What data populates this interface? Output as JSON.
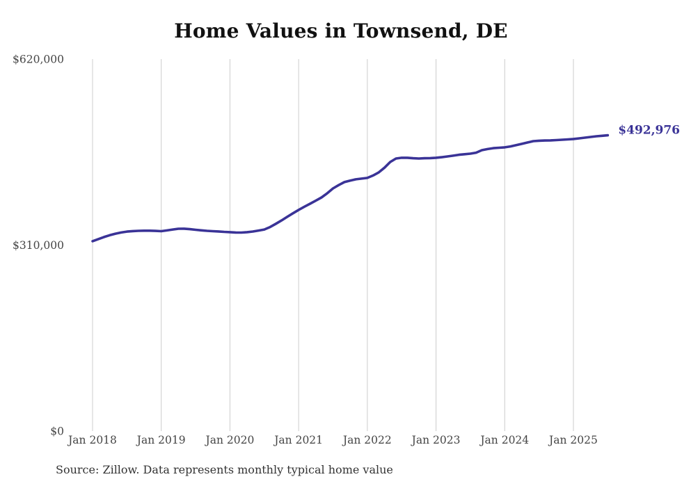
{
  "page": {
    "background_color": "#ffffff"
  },
  "chart_data": {
    "type": "line",
    "title": "Home Values in Townsend, DE",
    "source_note": "Source: Zillow. Data represents monthly typical home value",
    "end_label": "$492,976",
    "xlabel": "",
    "ylabel": "",
    "x_start": "Jan 2018",
    "x_end": "Jul 2025",
    "frequency": "monthly",
    "x_tick_labels": [
      "Jan 2018",
      "Jan 2019",
      "Jan 2020",
      "Jan 2021",
      "Jan 2022",
      "Jan 2023",
      "Jan 2024",
      "Jan 2025"
    ],
    "y_ticks": [
      {
        "value": 0,
        "label": "$0"
      },
      {
        "value": 310000,
        "label": "$310,000"
      },
      {
        "value": 620000,
        "label": "$620,000"
      }
    ],
    "ylim": [
      0,
      620000
    ],
    "grid": "vertical-only",
    "legend_position": "none",
    "colors": {
      "line": "#3a3397",
      "end_label": "#3a3397",
      "gridline": "#cccccc",
      "tick_label": "#454545",
      "title": "#111111",
      "source": "#333333"
    },
    "series": [
      {
        "name": "Monthly typical home value",
        "values": [
          316500,
          320000,
          323500,
          326500,
          329000,
          331000,
          332500,
          333300,
          333800,
          334000,
          334000,
          333600,
          333200,
          334500,
          336000,
          337200,
          337300,
          336500,
          335500,
          334600,
          333800,
          333200,
          332700,
          332000,
          331500,
          331000,
          330900,
          331500,
          332600,
          334200,
          336000,
          340000,
          345400,
          351000,
          357000,
          363000,
          368600,
          374000,
          379000,
          384000,
          389400,
          396500,
          404500,
          410000,
          415000,
          417500,
          419600,
          420800,
          421900,
          426000,
          431200,
          439000,
          448500,
          454300,
          455500,
          455500,
          454800,
          454300,
          454700,
          455000,
          455500,
          456500,
          457800,
          459000,
          460500,
          461500,
          462400,
          464000,
          468200,
          470000,
          471500,
          472300,
          472900,
          474500,
          476500,
          478700,
          481000,
          483300,
          484000,
          484300,
          484500,
          485000,
          485600,
          486200,
          486800,
          487900,
          489000,
          490200,
          491400,
          492200,
          492976
        ]
      }
    ]
  }
}
